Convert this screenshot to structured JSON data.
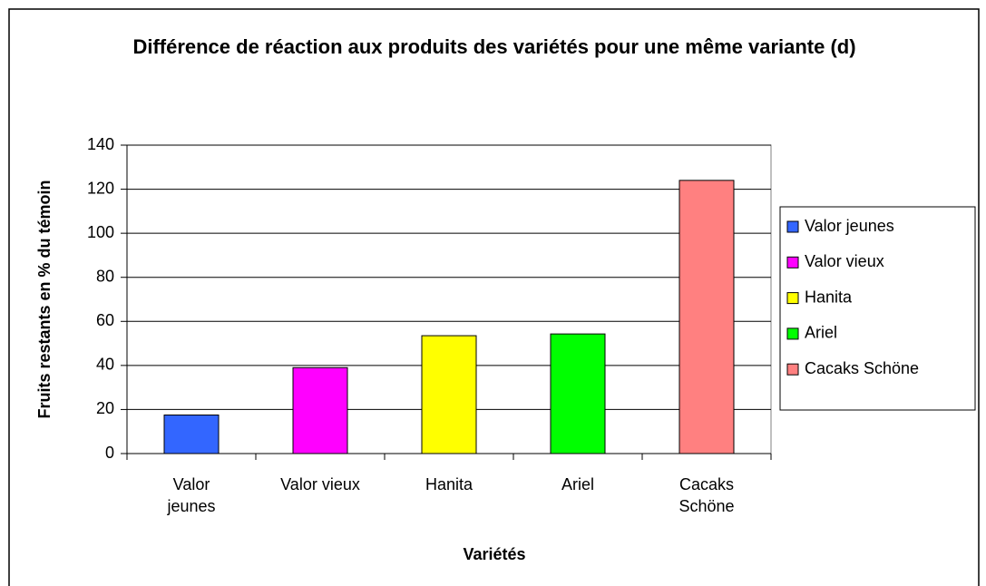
{
  "chart_data": {
    "type": "bar",
    "title": "Différence de réaction aux produits des variétés pour une même variante (d)",
    "x_label": "Variétés",
    "y_label": "Fruits restants en % du témoin",
    "categories": [
      "Valor jeunes",
      "Valor vieux",
      "Hanita",
      "Ariel",
      "Cacaks Schöne"
    ],
    "series": [
      {
        "name": "Valor jeunes",
        "color": "#3366ff",
        "value": 17.5
      },
      {
        "name": "Valor vieux",
        "color": "#ff00ff",
        "value": 39
      },
      {
        "name": "Hanita",
        "color": "#ffff00",
        "value": 53.5
      },
      {
        "name": "Ariel",
        "color": "#00ff00",
        "value": 54.3
      },
      {
        "name": "Cacaks Schöne",
        "color": "#ff8080",
        "value": 124
      }
    ],
    "ylim": [
      0,
      140
    ],
    "yticks": [
      0,
      20,
      40,
      60,
      80,
      100,
      120,
      140
    ],
    "grid": true,
    "legend": "right"
  }
}
